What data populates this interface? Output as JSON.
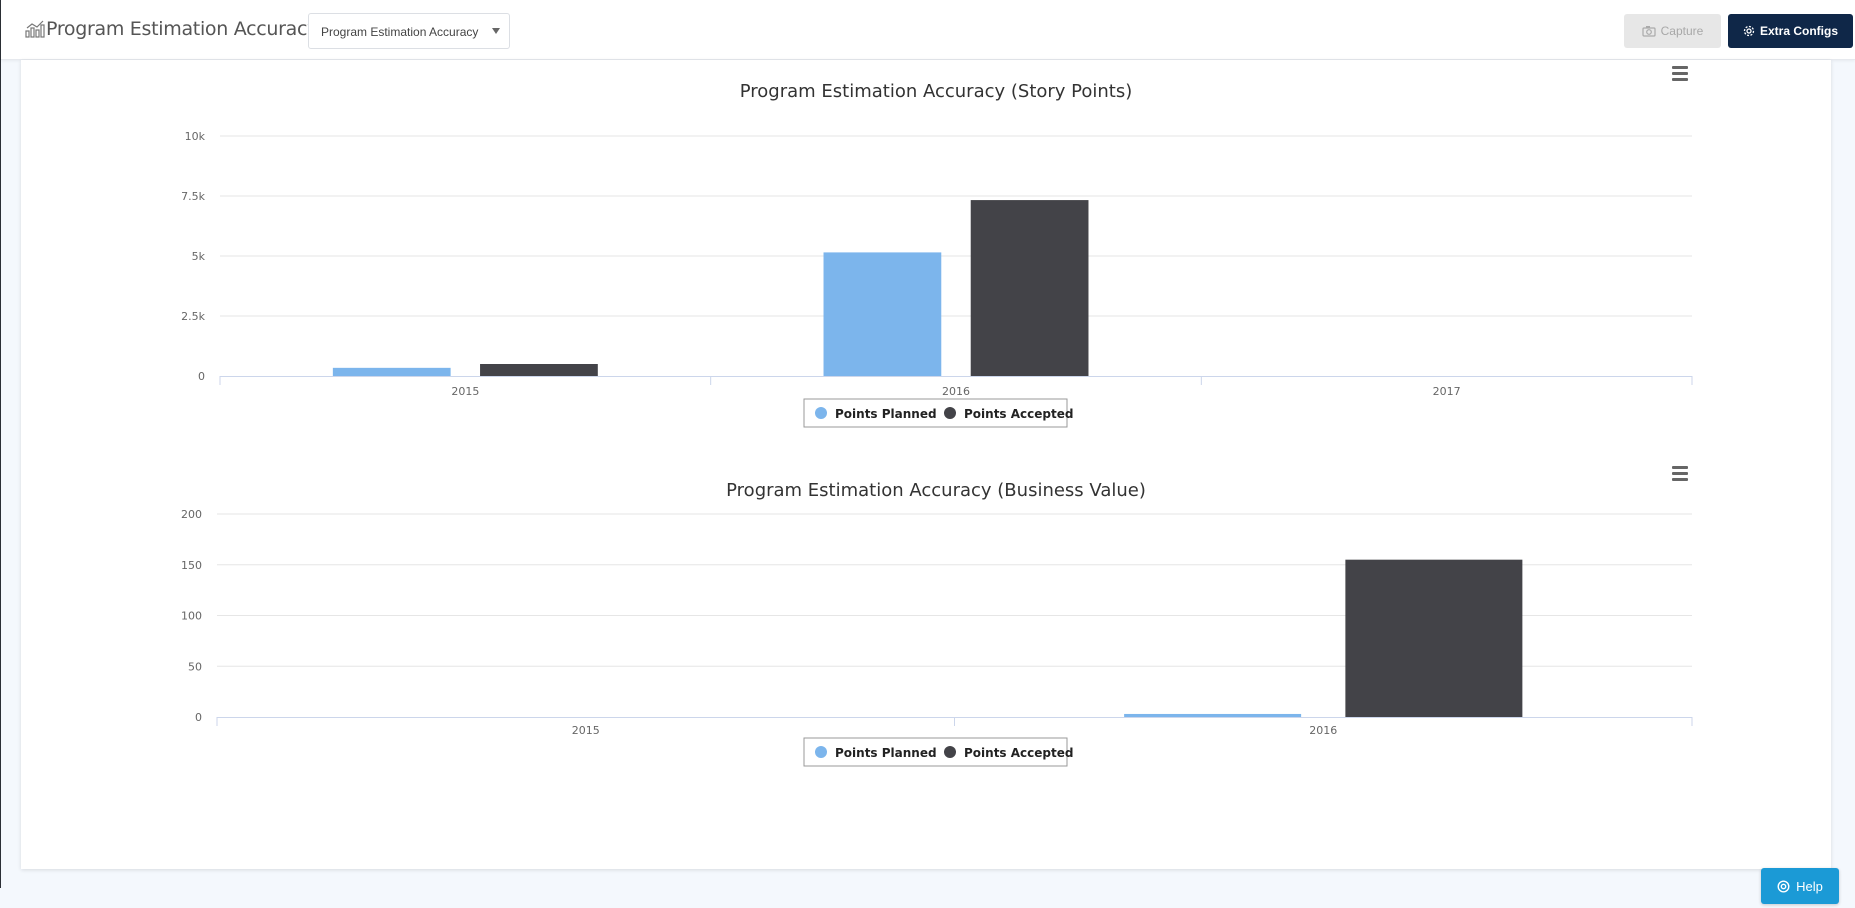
{
  "header": {
    "title": "Program Estimation Accuracy",
    "report_select": {
      "value": "Program Estimation Accuracy"
    },
    "capture_label": "Capture",
    "extra_configs_label": "Extra Configs",
    "app_icon": "chart-icon",
    "capture_icon": "camera-icon",
    "extra_configs_icon": "gear-icon"
  },
  "help": {
    "label": "Help",
    "icon": "lifebuoy-icon"
  },
  "colors": {
    "planned": "#7cb5ec",
    "accepted": "#434348",
    "header_button": "#0f2748",
    "help": "#1b9ad6"
  },
  "chart_data": [
    {
      "type": "bar",
      "title": "Program Estimation Accuracy (Story Points)",
      "categories": [
        "2015",
        "2016",
        "2017"
      ],
      "y_ticks": [
        "0",
        "2.5k",
        "5k",
        "7.5k",
        "10k"
      ],
      "ylim": [
        0,
        10000
      ],
      "series": [
        {
          "name": "Points Planned",
          "color": "#7cb5ec",
          "values": [
            340,
            5150,
            0
          ]
        },
        {
          "name": "Points Accepted",
          "color": "#434348",
          "values": [
            500,
            7330,
            0
          ]
        }
      ],
      "legend": "bottom-center",
      "grid": true
    },
    {
      "type": "bar",
      "title": "Program Estimation Accuracy (Business Value)",
      "categories": [
        "2015",
        "2016"
      ],
      "y_ticks": [
        "0",
        "50",
        "100",
        "150",
        "200"
      ],
      "ylim": [
        0,
        200
      ],
      "series": [
        {
          "name": "Points Planned",
          "color": "#7cb5ec",
          "values": [
            0,
            3
          ]
        },
        {
          "name": "Points Accepted",
          "color": "#434348",
          "values": [
            0,
            155
          ]
        }
      ],
      "legend": "bottom-center",
      "grid": true
    }
  ]
}
